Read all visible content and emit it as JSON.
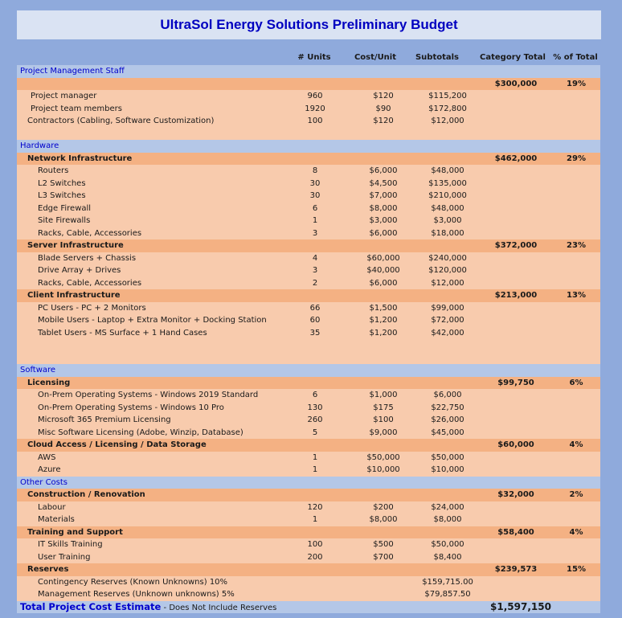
{
  "title": "UltraSol Energy Solutions Preliminary Budget",
  "headers": {
    "units": "# Units",
    "cost": "Cost/Unit",
    "subtotals": "Subtotals",
    "category_total": "Category Total",
    "pct": "% of Total"
  },
  "rows": [
    {
      "type": "section",
      "label": "Project Management Staff"
    },
    {
      "type": "cat",
      "label": "",
      "category_total": "$300,000",
      "pct": "19%"
    },
    {
      "type": "item",
      "lvl": "lvl1b",
      "label": "Project manager",
      "units": "960",
      "cost": "$120",
      "sub": "$115,200"
    },
    {
      "type": "item",
      "lvl": "lvl1b",
      "label": "Project team members",
      "units": "1920",
      "cost": "$90",
      "sub": "$172,800"
    },
    {
      "type": "item",
      "lvl": "lvl1",
      "label": "Contractors (Cabling, Software Customization)",
      "units": "100",
      "cost": "$120",
      "sub": "$12,000"
    },
    {
      "type": "blank"
    },
    {
      "type": "section",
      "label": "Hardware"
    },
    {
      "type": "cat",
      "label": "Network Infrastructure",
      "category_total": "$462,000",
      "pct": "29%"
    },
    {
      "type": "item",
      "lvl": "lvl2",
      "label": "Routers",
      "units": "8",
      "cost": "$6,000",
      "sub": "$48,000"
    },
    {
      "type": "item",
      "lvl": "lvl2",
      "label": "L2 Switches",
      "units": "30",
      "cost": "$4,500",
      "sub": "$135,000"
    },
    {
      "type": "item",
      "lvl": "lvl2",
      "label": "L3 Switches",
      "units": "30",
      "cost": "$7,000",
      "sub": "$210,000"
    },
    {
      "type": "item",
      "lvl": "lvl2",
      "label": "Edge Firewall",
      "units": "6",
      "cost": "$8,000",
      "sub": "$48,000"
    },
    {
      "type": "item",
      "lvl": "lvl2",
      "label": "Site Firewalls",
      "units": "1",
      "cost": "$3,000",
      "sub": "$3,000"
    },
    {
      "type": "item",
      "lvl": "lvl2",
      "label": "Racks, Cable, Accessories",
      "units": "3",
      "cost": "$6,000",
      "sub": "$18,000"
    },
    {
      "type": "cat",
      "label": "Server Infrastructure",
      "category_total": "$372,000",
      "pct": "23%"
    },
    {
      "type": "item",
      "lvl": "lvl2",
      "label": "Blade Servers + Chassis",
      "units": "4",
      "cost": "$60,000",
      "sub": "$240,000"
    },
    {
      "type": "item",
      "lvl": "lvl2",
      "label": "Drive Array + Drives",
      "units": "3",
      "cost": "$40,000",
      "sub": "$120,000"
    },
    {
      "type": "item",
      "lvl": "lvl2",
      "label": "Racks, Cable, Accessories",
      "units": "2",
      "cost": "$6,000",
      "sub": "$12,000"
    },
    {
      "type": "cat",
      "label": "Client Infrastructure",
      "category_total": "$213,000",
      "pct": "13%"
    },
    {
      "type": "item",
      "lvl": "lvl2",
      "label": "PC Users - PC +  2 Monitors",
      "units": "66",
      "cost": "$1,500",
      "sub": "$99,000"
    },
    {
      "type": "item",
      "lvl": "lvl2",
      "label": "Mobile Users - Laptop + Extra Monitor + Docking Station",
      "units": "60",
      "cost": "$1,200",
      "sub": "$72,000"
    },
    {
      "type": "item",
      "lvl": "lvl2",
      "label": "Tablet Users - MS Surface + 1 Hand Cases",
      "units": "35",
      "cost": "$1,200",
      "sub": "$42,000"
    },
    {
      "type": "blank"
    },
    {
      "type": "blank"
    },
    {
      "type": "section",
      "label": "Software"
    },
    {
      "type": "cat",
      "label": "Licensing",
      "category_total": "$99,750",
      "pct": "6%"
    },
    {
      "type": "item",
      "lvl": "lvl2",
      "label": "On-Prem Operating Systems - Windows 2019 Standard",
      "units": "6",
      "cost": "$1,000",
      "sub": "$6,000"
    },
    {
      "type": "item",
      "lvl": "lvl2",
      "label": "On-Prem Operating Systems - Windows 10 Pro",
      "units": "130",
      "cost": "$175",
      "sub": "$22,750"
    },
    {
      "type": "item",
      "lvl": "lvl2",
      "label": "Microsoft 365 Premium Licensing",
      "units": "260",
      "cost": "$100",
      "sub": "$26,000"
    },
    {
      "type": "item",
      "lvl": "lvl2",
      "label": "Misc Software Licensing (Adobe, Winzip, Database)",
      "units": "5",
      "cost": "$9,000",
      "sub": "$45,000"
    },
    {
      "type": "cat",
      "label": "Cloud Access / Licensing / Data Storage",
      "category_total": "$60,000",
      "pct": "4%"
    },
    {
      "type": "item",
      "lvl": "lvl2",
      "label": "AWS",
      "units": "1",
      "cost": "$50,000",
      "sub": "$50,000"
    },
    {
      "type": "item",
      "lvl": "lvl2",
      "label": "Azure",
      "units": "1",
      "cost": "$10,000",
      "sub": "$10,000"
    },
    {
      "type": "section",
      "label": "Other Costs"
    },
    {
      "type": "cat",
      "label": "Construction / Renovation",
      "category_total": "$32,000",
      "pct": "2%"
    },
    {
      "type": "item",
      "lvl": "lvl2",
      "label": "Labour",
      "units": "120",
      "cost": "$200",
      "sub": "$24,000"
    },
    {
      "type": "item",
      "lvl": "lvl2",
      "label": "Materials",
      "units": "1",
      "cost": "$8,000",
      "sub": "$8,000"
    },
    {
      "type": "cat",
      "label": "Training and Support",
      "category_total": "$58,400",
      "pct": "4%"
    },
    {
      "type": "item",
      "lvl": "lvl2",
      "label": "IT Skills Training",
      "units": "100",
      "cost": "$500",
      "sub": "$50,000"
    },
    {
      "type": "item",
      "lvl": "lvl2",
      "label": "User Training",
      "units": "200",
      "cost": "$700",
      "sub": "$8,400"
    },
    {
      "type": "cat",
      "label": "Reserves",
      "category_total": "$239,573",
      "pct": "15%"
    },
    {
      "type": "item",
      "lvl": "lvl2",
      "label": "Contingency Reserves (Known Unknowns) 10%",
      "units": "",
      "cost": "",
      "sub": "$159,715.00"
    },
    {
      "type": "item",
      "lvl": "lvl2",
      "label": "Management Reserves (Unknown unknowns) 5%",
      "units": "",
      "cost": "",
      "sub": "$79,857.50"
    }
  ],
  "total": {
    "label": "Total Project Cost Estimate",
    "note": " - Does Not Include Reserves",
    "value": "$1,597,150"
  }
}
